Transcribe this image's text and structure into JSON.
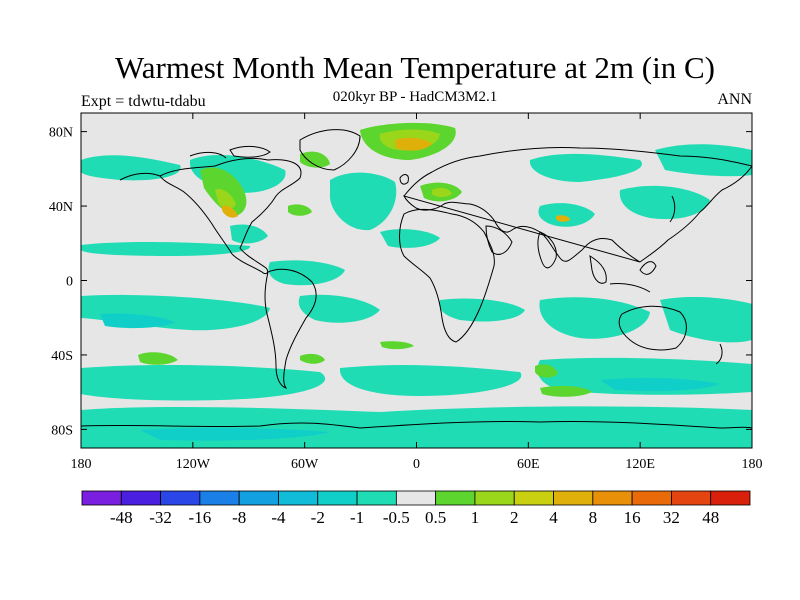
{
  "title": "Warmest Month Mean Temperature at 2m (in C)",
  "subtitle": "020kyr BP - HadCM3M2.1",
  "experiment": "Expt = tdwtu-tdabu",
  "period": "ANN",
  "chart_data": {
    "type": "heatmap",
    "projection": "cylindrical-equidistant",
    "xlim": [
      -180,
      180
    ],
    "ylim": [
      -90,
      90
    ],
    "x_ticks": [
      "180",
      "120W",
      "60W",
      "0",
      "60E",
      "120E",
      "180"
    ],
    "y_ticks": [
      "80N",
      "40N",
      "0",
      "40S",
      "80S"
    ],
    "colorbar": {
      "labels": [
        "-48",
        "-32",
        "-16",
        "-8",
        "-4",
        "-2",
        "-1",
        "-0.5",
        "0.5",
        "1",
        "2",
        "4",
        "8",
        "16",
        "32",
        "48"
      ],
      "colors": [
        "#7a1fe0",
        "#4b1fe0",
        "#2a46e6",
        "#1a7fe6",
        "#12a0e0",
        "#10bcd8",
        "#10cfc8",
        "#20dcb4",
        "#e6e6e6",
        "#5cd62e",
        "#9ad61a",
        "#c8d010",
        "#e0b00a",
        "#e89008",
        "#e86a08",
        "#e44410",
        "#d8200a"
      ]
    },
    "background_color": "#e6e6e6"
  }
}
